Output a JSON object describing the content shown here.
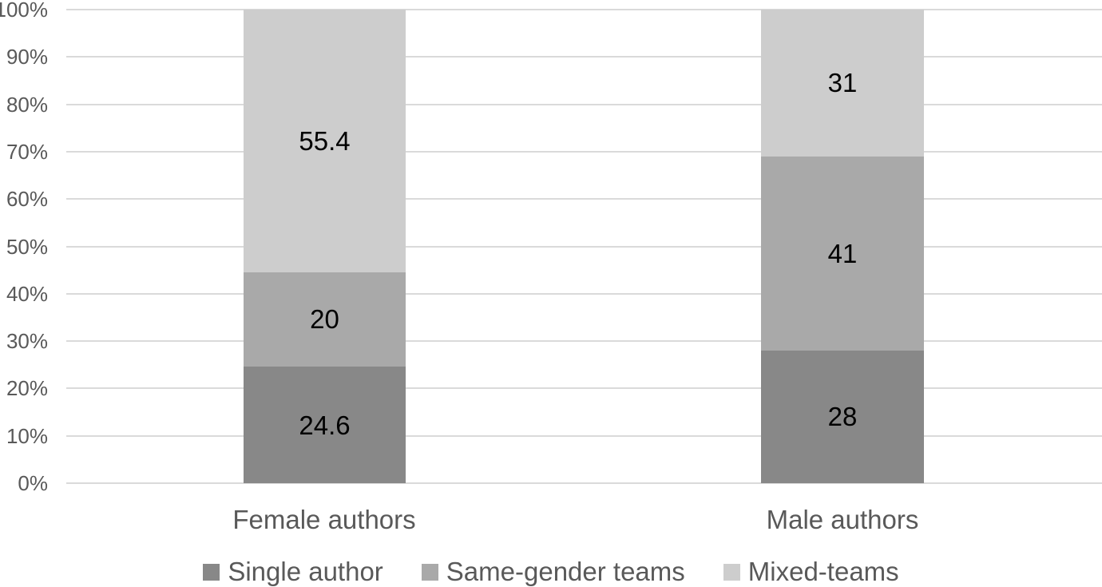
{
  "chart_data": {
    "type": "bar",
    "subtype": "100-percent-stacked-column",
    "title": "",
    "xlabel": "",
    "ylabel": "",
    "categories": [
      "Female authors",
      "Male authors"
    ],
    "series": [
      {
        "name": "Single author",
        "values": [
          24.6,
          28
        ],
        "labels": [
          "24.6",
          "28"
        ],
        "color": "#888888"
      },
      {
        "name": "Same-gender teams",
        "values": [
          20,
          41
        ],
        "labels": [
          "20",
          "41"
        ],
        "color": "#a9a9a9"
      },
      {
        "name": "Mixed-teams",
        "values": [
          55.4,
          31
        ],
        "labels": [
          "55.4",
          "31"
        ],
        "color": "#cdcdcd"
      }
    ],
    "y_axis": {
      "range": [
        0,
        100
      ],
      "tick_values": [
        0,
        10,
        20,
        30,
        40,
        50,
        60,
        70,
        80,
        90,
        100
      ],
      "tick_labels": [
        "0%",
        "10%",
        "20%",
        "30%",
        "40%",
        "50%",
        "60%",
        "70%",
        "80%",
        "90%",
        "100%"
      ],
      "grid": true
    },
    "legend": {
      "position": "bottom"
    },
    "styles": {
      "background_color": "#ffffff",
      "gridline_color": "#dadada",
      "axis_text_color": "#595959",
      "category_text_color": "#595959",
      "legend_text_color": "#595959",
      "data_label_color": "#000000"
    }
  }
}
